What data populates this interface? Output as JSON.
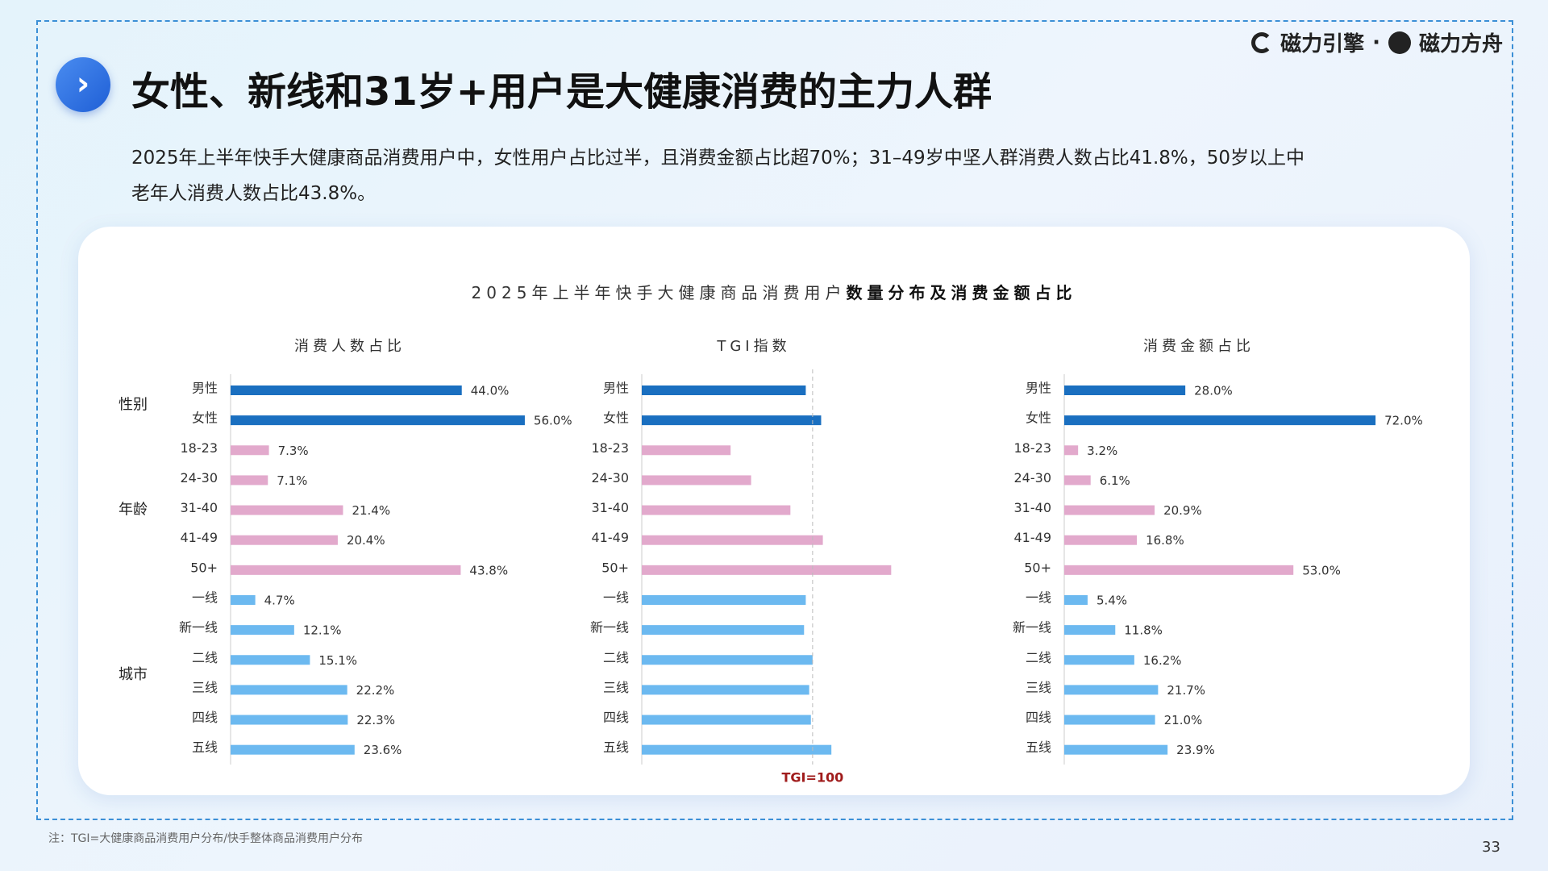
{
  "logo": {
    "left": "磁力引擎",
    "separator": "·",
    "right": "磁力方舟"
  },
  "header": {
    "title": "女性、新线和31岁+用户是大健康消费的主力人群",
    "subtitle": "2025年上半年快手大健康商品消费用户中，女性用户占比过半，且消费金额占比超70%；31–49岁中坚人群消费人数占比41.8%，50岁以上中老年人消费人数占比43.8%。"
  },
  "card": {
    "title": "2025年上半年快手大健康商品消费用户",
    "title_bold": "数量分布及消费金额占比"
  },
  "chart_data": [
    {
      "type": "bar",
      "orientation": "horizontal",
      "title": "消费人数占比",
      "xlim": [
        0,
        60
      ],
      "groups": [
        {
          "name": "性别",
          "color": "#1a6fc0",
          "categories": [
            "男性",
            "女性"
          ],
          "values": [
            44.0,
            56.0
          ],
          "value_labels": [
            "44.0%",
            "56.0%"
          ]
        },
        {
          "name": "年龄",
          "color": "#e2a9cc",
          "categories": [
            "18-23",
            "24-30",
            "31-40",
            "41-49",
            "50+"
          ],
          "values": [
            7.3,
            7.1,
            21.4,
            20.4,
            43.8
          ],
          "value_labels": [
            "7.3%",
            "7.1%",
            "21.4%",
            "20.4%",
            "43.8%"
          ]
        },
        {
          "name": "城市",
          "color": "#6cb9f0",
          "categories": [
            "一线",
            "新一线",
            "二线",
            "三线",
            "四线",
            "五线"
          ],
          "values": [
            4.7,
            12.1,
            15.1,
            22.2,
            22.3,
            23.6
          ],
          "value_labels": [
            "4.7%",
            "12.1%",
            "15.1%",
            "22.2%",
            "22.3%",
            "23.6%"
          ]
        }
      ]
    },
    {
      "type": "bar",
      "orientation": "horizontal",
      "title": "TGI指数",
      "xlim": [
        0,
        160
      ],
      "reference": {
        "value": 100,
        "label": "TGI=100"
      },
      "groups": [
        {
          "color": "#1a6fc0",
          "categories": [
            "男性",
            "女性"
          ],
          "values": [
            96,
            105
          ]
        },
        {
          "color": "#e2a9cc",
          "categories": [
            "18-23",
            "24-30",
            "31-40",
            "41-49",
            "50+"
          ],
          "values": [
            52,
            64,
            87,
            106,
            146
          ]
        },
        {
          "color": "#6cb9f0",
          "categories": [
            "一线",
            "新一线",
            "二线",
            "三线",
            "四线",
            "五线"
          ],
          "values": [
            96,
            95,
            100,
            98,
            99,
            111
          ]
        }
      ]
    },
    {
      "type": "bar",
      "orientation": "horizontal",
      "title": "消费金额占比",
      "xlim": [
        0,
        80
      ],
      "groups": [
        {
          "color": "#1a6fc0",
          "categories": [
            "男性",
            "女性"
          ],
          "values": [
            28.0,
            72.0
          ],
          "value_labels": [
            "28.0%",
            "72.0%"
          ]
        },
        {
          "color": "#e2a9cc",
          "categories": [
            "18-23",
            "24-30",
            "31-40",
            "41-49",
            "50+"
          ],
          "values": [
            3.2,
            6.1,
            20.9,
            16.8,
            53.0
          ],
          "value_labels": [
            "3.2%",
            "6.1%",
            "20.9%",
            "16.8%",
            "53.0%"
          ]
        },
        {
          "color": "#6cb9f0",
          "categories": [
            "一线",
            "新一线",
            "二线",
            "三线",
            "四线",
            "五线"
          ],
          "values": [
            5.4,
            11.8,
            16.2,
            21.7,
            21.0,
            23.9
          ],
          "value_labels": [
            "5.4%",
            "11.8%",
            "16.2%",
            "21.7%",
            "21.0%",
            "23.9%"
          ]
        }
      ]
    }
  ],
  "footnote": "注：TGI=大健康商品消费用户分布/快手整体商品消费用户分布",
  "page_number": "33"
}
